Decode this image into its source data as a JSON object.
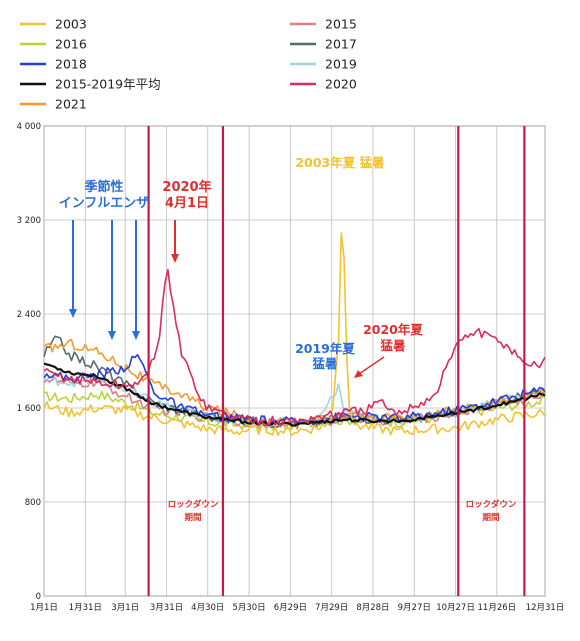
{
  "chart_data": {
    "type": "line",
    "title": "",
    "xlabel": "",
    "ylabel": "",
    "ylim": [
      0,
      4000
    ],
    "y_ticks": [
      "4 000",
      "3 200",
      "2 400",
      "1 600",
      "800",
      "0"
    ],
    "y_tick_values": [
      4000,
      3200,
      2400,
      1600,
      800,
      0
    ],
    "x_ticks": [
      "1月1日",
      "1月31日",
      "3月1日",
      "3月31日",
      "4月30日",
      "5月30日",
      "6月29日",
      "7月29日",
      "8月28日",
      "9月27日",
      "10月27日",
      "11月26日",
      "12月31日"
    ],
    "x_tick_days": [
      1,
      31,
      60,
      90,
      120,
      150,
      180,
      210,
      240,
      270,
      300,
      330,
      365
    ],
    "grid": true,
    "legend_position": "top",
    "series": [
      {
        "name": "2003",
        "color": "#f2c230",
        "x": [
          1,
          20,
          40,
          60,
          80,
          100,
          120,
          140,
          160,
          180,
          200,
          210,
          215,
          218,
          220,
          223,
          226,
          230,
          240,
          260,
          280,
          300,
          320,
          340,
          365
        ],
        "y": [
          1620,
          1560,
          1600,
          1580,
          1520,
          1470,
          1420,
          1400,
          1420,
          1400,
          1430,
          1500,
          2200,
          3520,
          2300,
          1600,
          1480,
          1450,
          1430,
          1400,
          1420,
          1430,
          1480,
          1520,
          1560
        ]
      },
      {
        "name": "2015",
        "color": "#d97f7f",
        "x": [
          1,
          20,
          40,
          60,
          80,
          100,
          120,
          140,
          160,
          180,
          200,
          220,
          240,
          260,
          280,
          300,
          320,
          340,
          365
        ],
        "y": [
          1850,
          1800,
          1820,
          1700,
          1600,
          1560,
          1520,
          1490,
          1470,
          1460,
          1480,
          1510,
          1500,
          1490,
          1520,
          1560,
          1600,
          1650,
          1700
        ]
      },
      {
        "name": "2016",
        "color": "#b8d43a",
        "x": [
          1,
          20,
          40,
          60,
          80,
          100,
          120,
          140,
          160,
          180,
          200,
          220,
          240,
          260,
          280,
          300,
          320,
          340,
          365
        ],
        "y": [
          1700,
          1680,
          1720,
          1650,
          1560,
          1520,
          1480,
          1460,
          1450,
          1450,
          1480,
          1500,
          1490,
          1480,
          1510,
          1540,
          1580,
          1620,
          1660
        ]
      },
      {
        "name": "2017",
        "color": "#5a6b66",
        "x": [
          1,
          10,
          20,
          40,
          60,
          80,
          100,
          120,
          140,
          160,
          180,
          200,
          220,
          240,
          260,
          280,
          300,
          320,
          340,
          365
        ],
        "y": [
          2050,
          2200,
          2050,
          1950,
          1800,
          1650,
          1580,
          1530,
          1500,
          1480,
          1470,
          1490,
          1520,
          1510,
          1500,
          1530,
          1570,
          1620,
          1680,
          1740
        ]
      },
      {
        "name": "2018",
        "color": "#2540d8",
        "x": [
          1,
          20,
          40,
          60,
          70,
          80,
          100,
          120,
          140,
          160,
          180,
          200,
          220,
          240,
          260,
          280,
          300,
          320,
          340,
          365
        ],
        "y": [
          1900,
          1850,
          1880,
          1950,
          2050,
          1750,
          1600,
          1540,
          1510,
          1490,
          1480,
          1500,
          1530,
          1520,
          1510,
          1540,
          1580,
          1630,
          1690,
          1760
        ]
      },
      {
        "name": "2019",
        "color": "#9fd3ea",
        "x": [
          1,
          20,
          40,
          60,
          80,
          100,
          120,
          140,
          160,
          180,
          200,
          215,
          220,
          240,
          260,
          280,
          300,
          320,
          340,
          365
        ],
        "y": [
          1850,
          1820,
          1830,
          1760,
          1650,
          1580,
          1530,
          1500,
          1480,
          1470,
          1500,
          1790,
          1560,
          1510,
          1500,
          1530,
          1570,
          1620,
          1680,
          1750
        ]
      },
      {
        "name": "2015-2019年平均",
        "color": "#111111",
        "x": [
          1,
          20,
          40,
          60,
          80,
          100,
          120,
          140,
          160,
          180,
          200,
          220,
          240,
          260,
          280,
          300,
          320,
          340,
          365
        ],
        "y": [
          1980,
          1900,
          1870,
          1770,
          1640,
          1570,
          1520,
          1490,
          1470,
          1460,
          1480,
          1500,
          1490,
          1490,
          1520,
          1560,
          1600,
          1650,
          1720
        ]
      },
      {
        "name": "2020",
        "color": "#dc2c5a",
        "x": [
          1,
          20,
          40,
          60,
          75,
          85,
          90,
          95,
          100,
          110,
          120,
          140,
          160,
          180,
          200,
          220,
          235,
          245,
          255,
          270,
          285,
          295,
          305,
          315,
          325,
          335,
          345,
          355,
          365
        ],
        "y": [
          1900,
          1850,
          1820,
          1780,
          1850,
          2200,
          2800,
          2500,
          2100,
          1800,
          1600,
          1520,
          1490,
          1480,
          1520,
          1560,
          1580,
          1650,
          1550,
          1620,
          1700,
          2000,
          2200,
          2250,
          2200,
          2150,
          2050,
          1950,
          2000
        ]
      },
      {
        "name": "2021",
        "color": "#f39a30",
        "x": [
          1,
          20,
          40,
          60,
          80,
          100,
          120,
          140,
          160,
          180,
          200,
          220,
          240,
          260,
          280,
          300,
          320,
          340,
          365
        ],
        "y": [
          2100,
          2150,
          2080,
          1950,
          1800,
          1720,
          1600,
          1540,
          1500,
          1480,
          1500,
          1530,
          1520,
          1510,
          1540,
          1580,
          1620,
          1680,
          1740
        ]
      }
    ],
    "lockdown_periods": [
      {
        "label": "ロックダウン期間",
        "start": 77,
        "end": 131
      },
      {
        "label": "ロックダウン期間",
        "start": 302,
        "end": 350
      }
    ],
    "annotations": [
      {
        "text": "季節性インフルエンザ",
        "color": "#2a6fd8"
      },
      {
        "text": "2020年4月1日",
        "color": "#e0302e"
      },
      {
        "text": "2003年夏 猛暑",
        "color": "#f2c230"
      },
      {
        "text": "2019年夏猛暑",
        "color": "#2a6fd8"
      },
      {
        "text": "2020年夏猛暑",
        "color": "#e0302e"
      }
    ]
  },
  "labels": {
    "flu_1": "季節性",
    "flu_2": "インフルエンザ",
    "apr1_1": "2020年",
    "apr1_2": "4月1日",
    "heat2003": "2003年夏 猛暑",
    "heat2019_1": "2019年夏",
    "heat2019_2": "猛暑",
    "heat2020_1": "2020年夏",
    "heat2020_2": "猛暑",
    "lockdown1_1": "ロックダウン",
    "lockdown1_2": "期間",
    "lockdown2_1": "ロックダウン",
    "lockdown2_2": "期間"
  }
}
